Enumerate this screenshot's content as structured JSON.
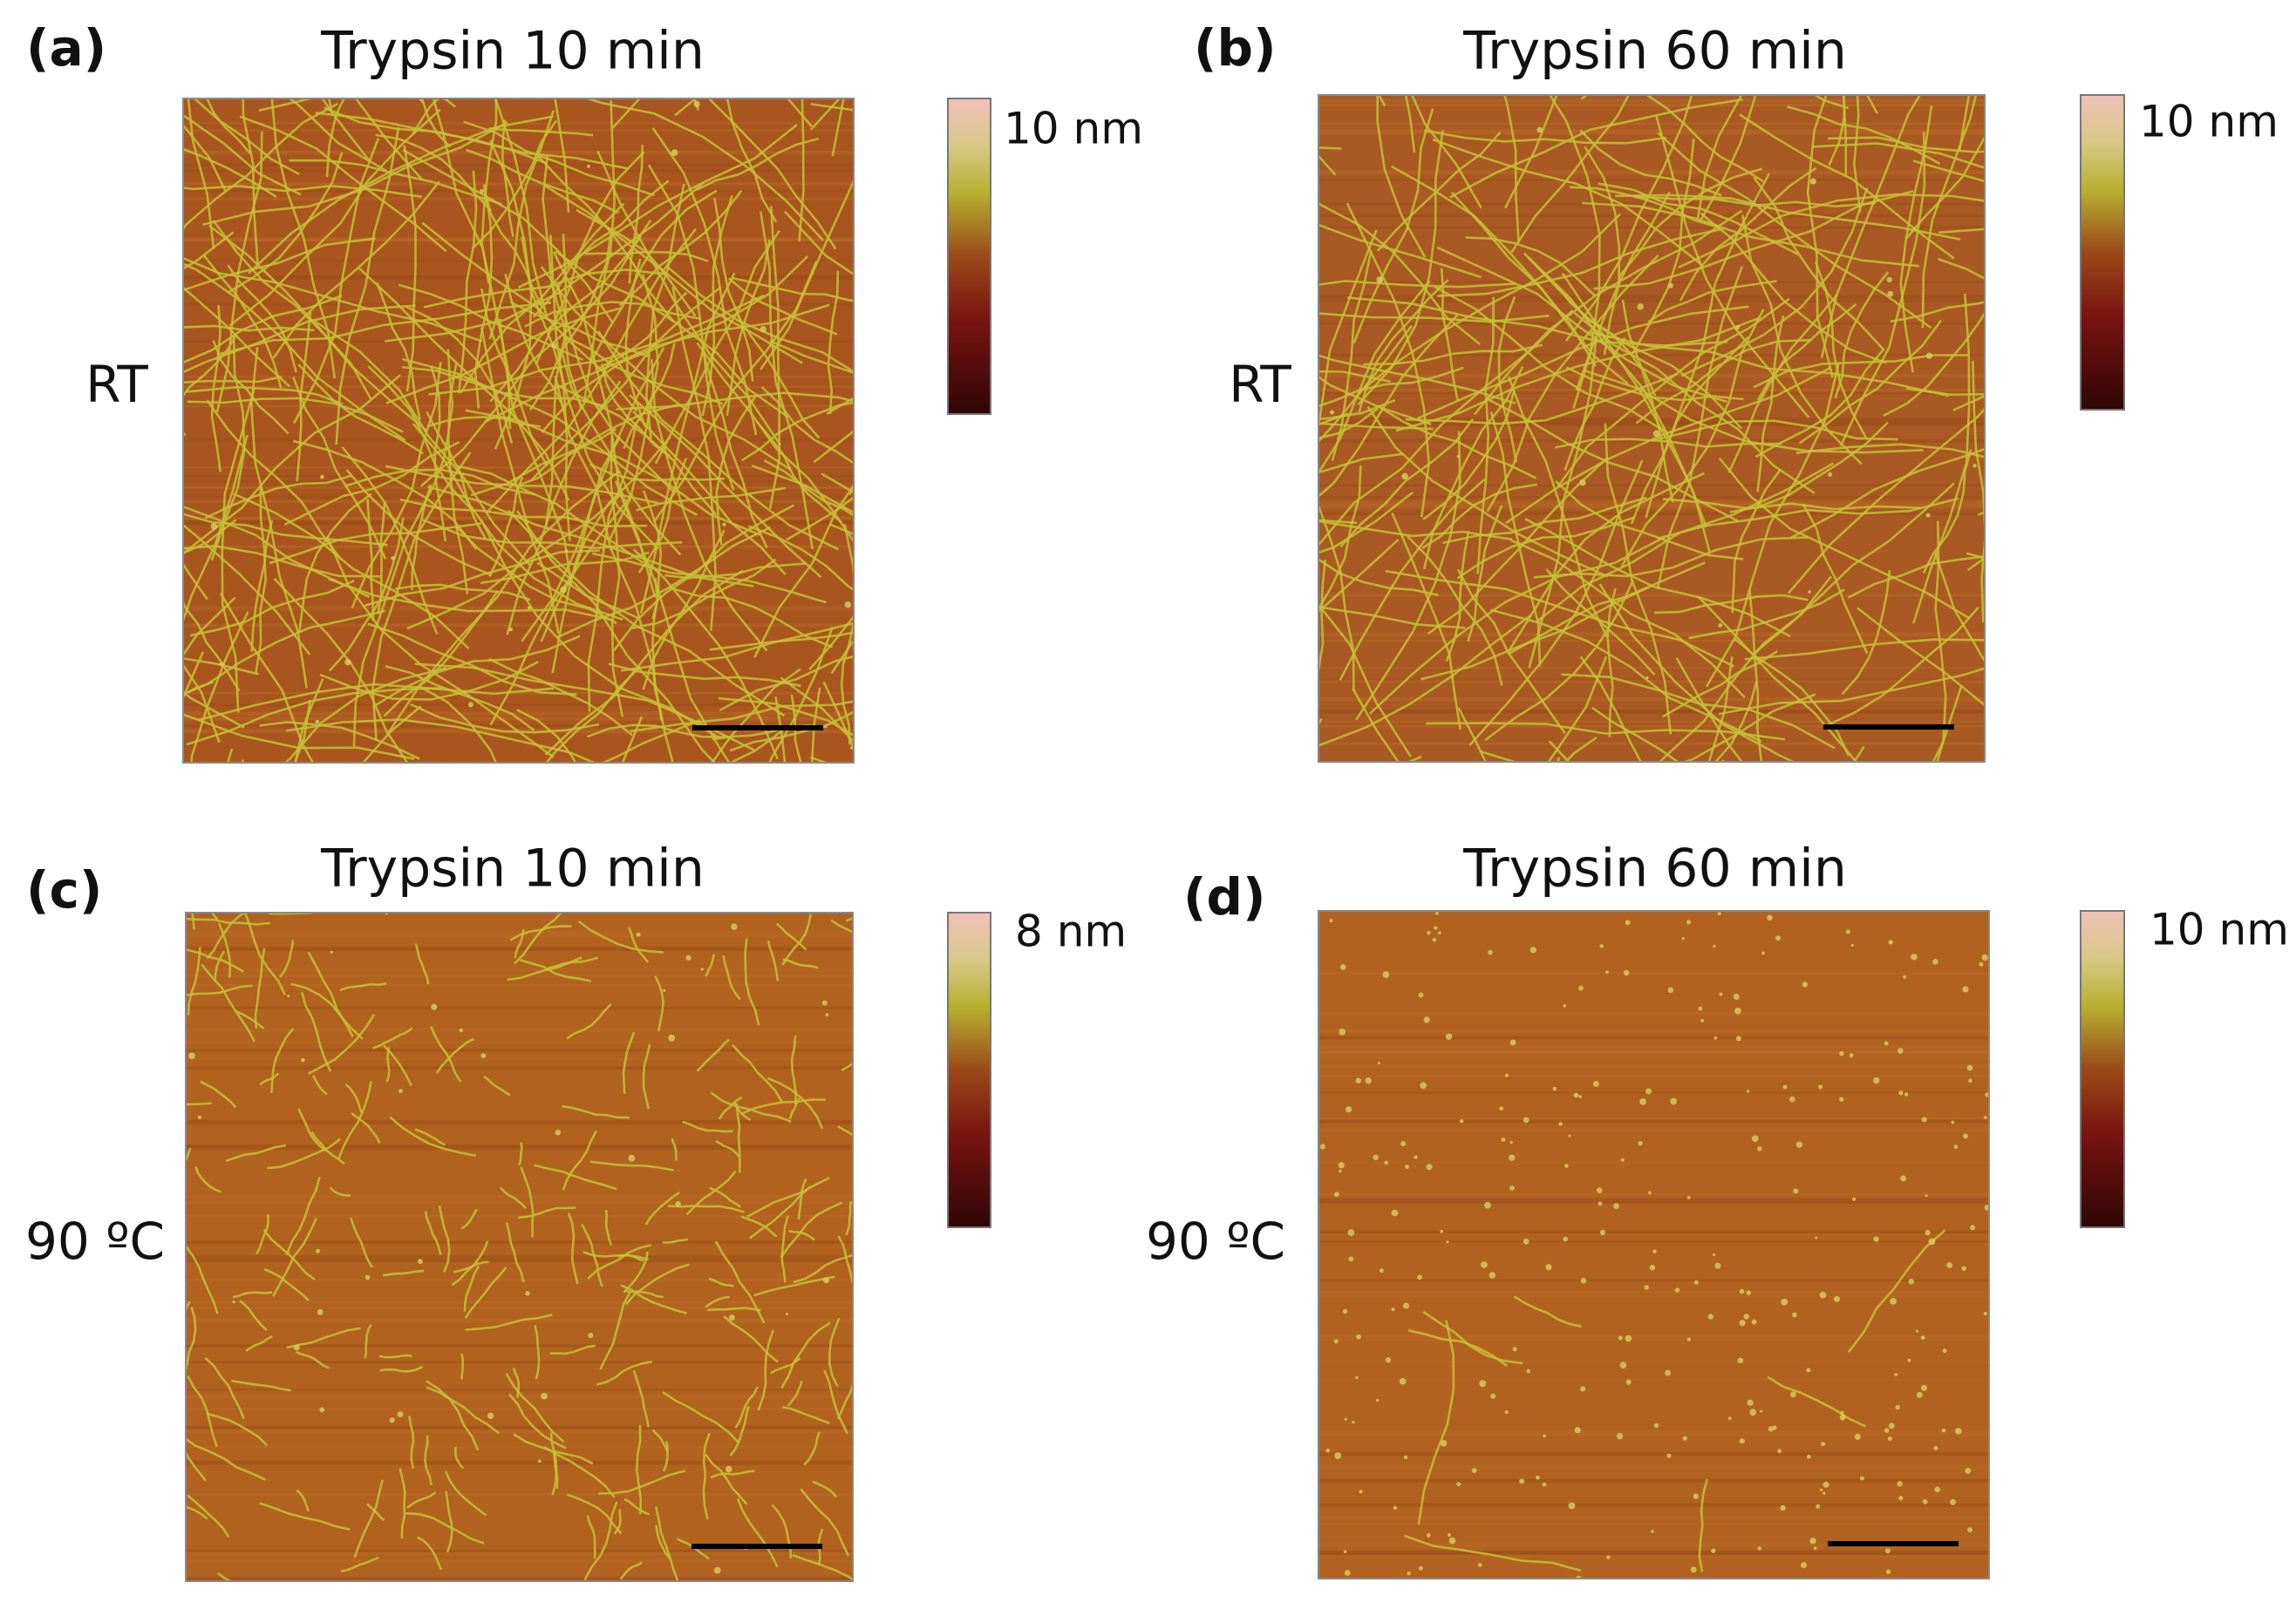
{
  "panels": [
    {
      "label": "(a)",
      "title": "Trypsin 10 min",
      "condition": "RT",
      "scale_max": "10 nm"
    },
    {
      "label": "(b)",
      "title": "Trypsin 60 min",
      "condition": "RT",
      "scale_max": "10 nm"
    },
    {
      "label": "(c)",
      "title": "Trypsin 10 min",
      "condition": "90 ºC",
      "scale_max": "8 nm"
    },
    {
      "label": "(d)",
      "title": "Trypsin 60 min",
      "condition": "90 ºC",
      "scale_max": "10 nm"
    }
  ]
}
